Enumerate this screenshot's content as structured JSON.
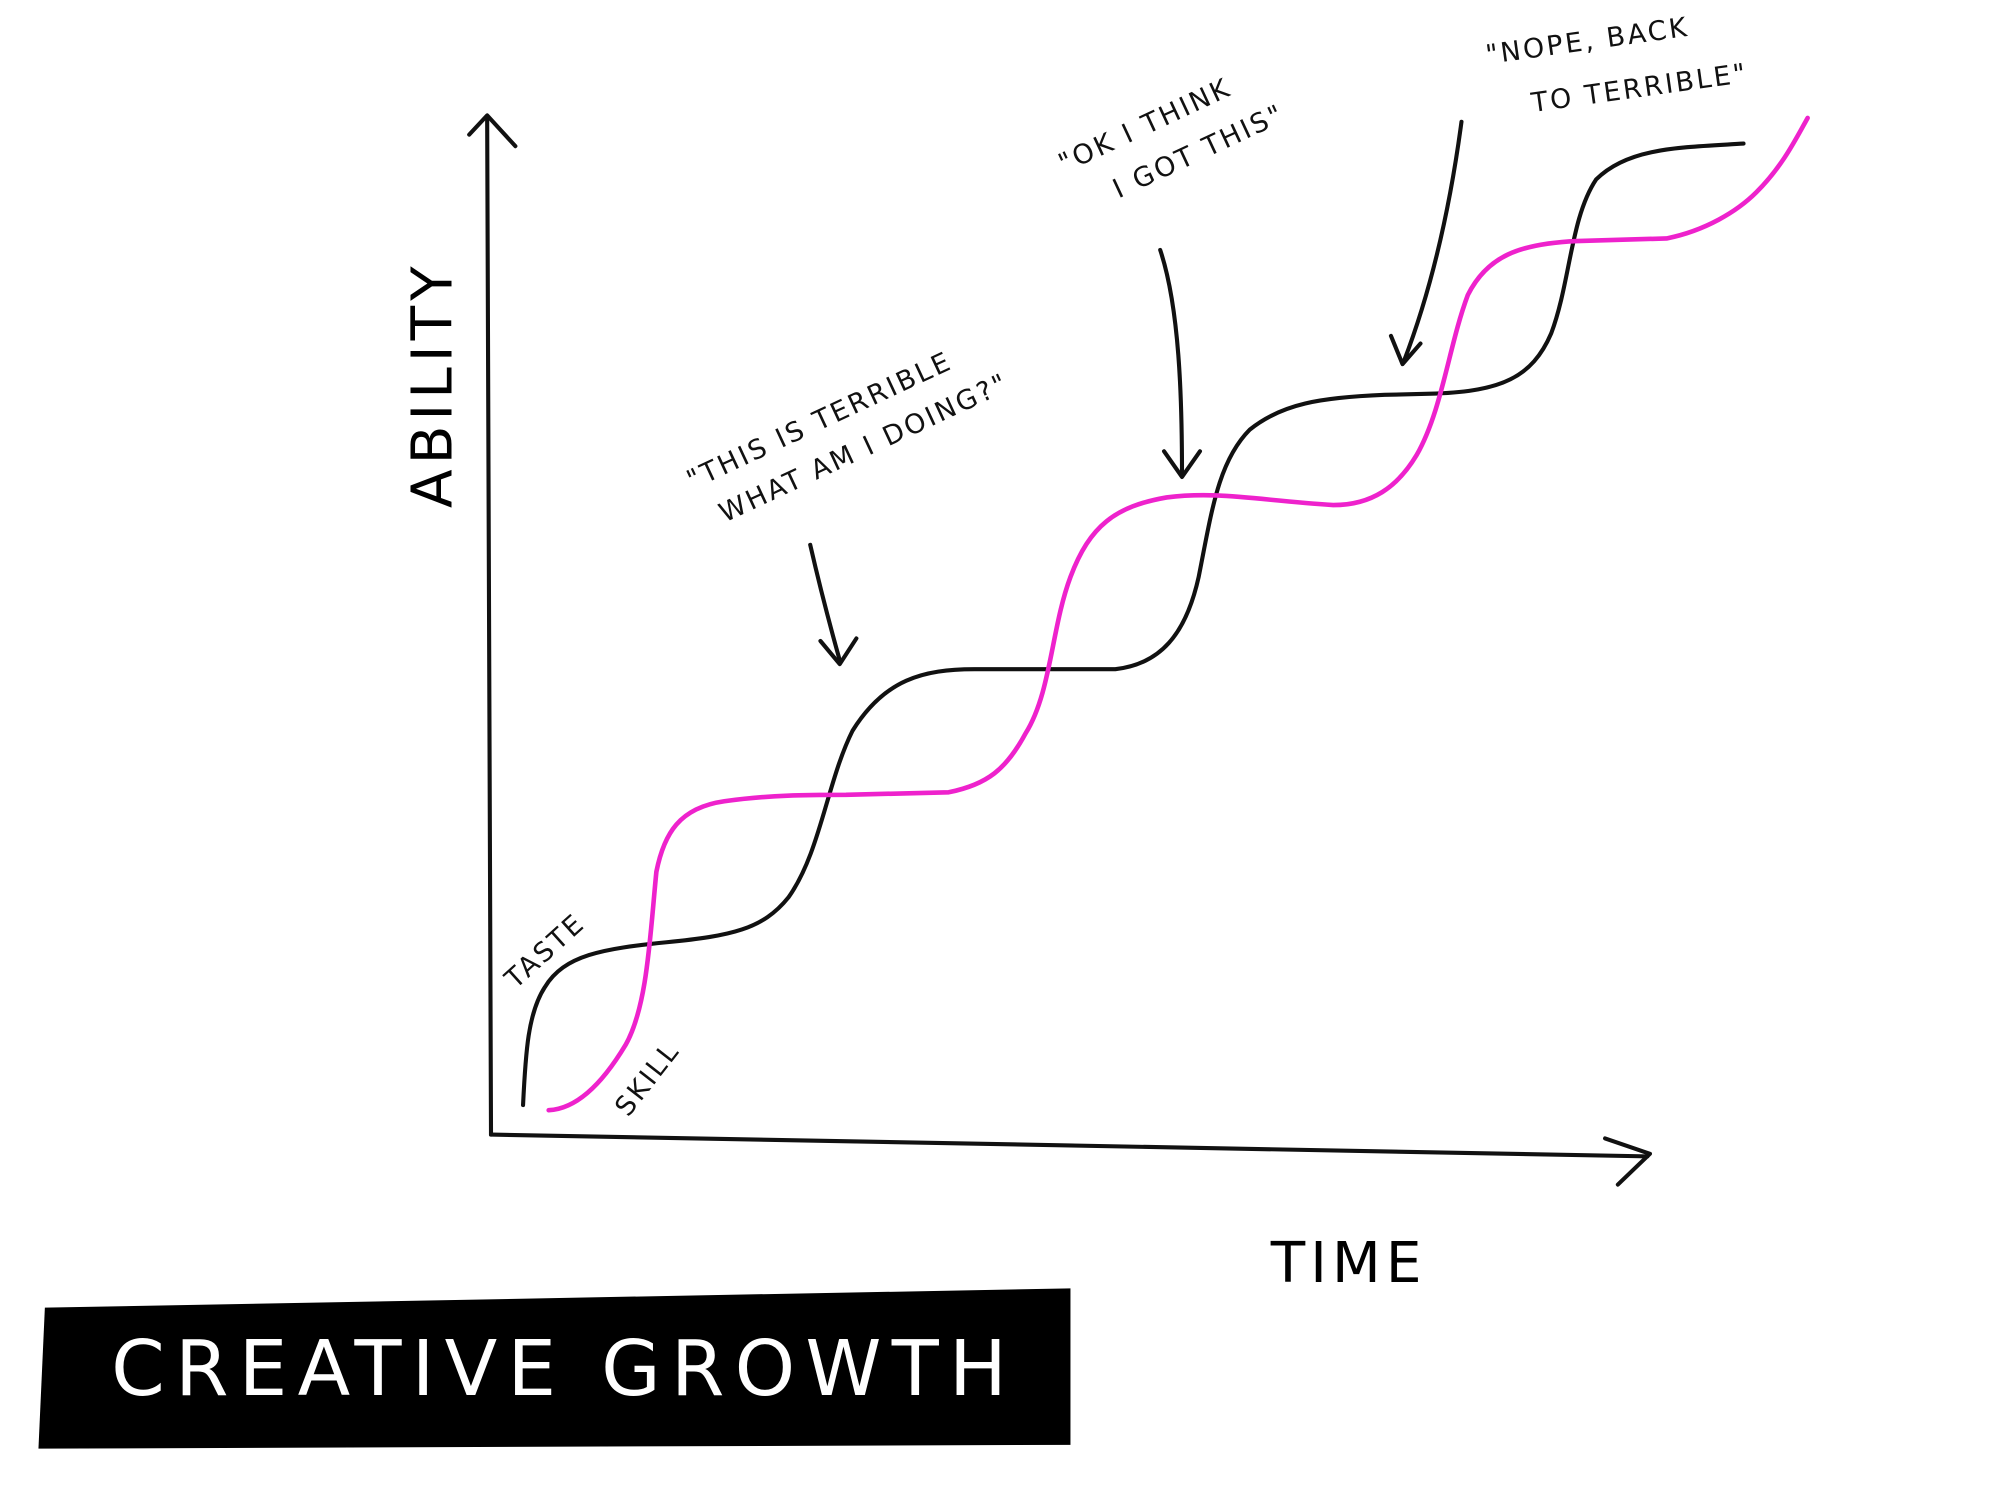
{
  "title": "CREATIVE GROWTH",
  "axes": {
    "y_label": "ABILITY",
    "x_label": "TIME"
  },
  "curves": [
    {
      "label": "TASTE"
    },
    {
      "label": "SKILL"
    }
  ],
  "annotations": [
    {
      "lines": [
        "\"THIS IS TERRIBLE",
        "WHAT AM I DOING?\""
      ]
    },
    {
      "lines": [
        "\"OK I THINK",
        "I GOT THIS\""
      ]
    },
    {
      "lines": [
        "\"NOPE, BACK",
        "TO TERRIBLE\""
      ]
    }
  ]
}
